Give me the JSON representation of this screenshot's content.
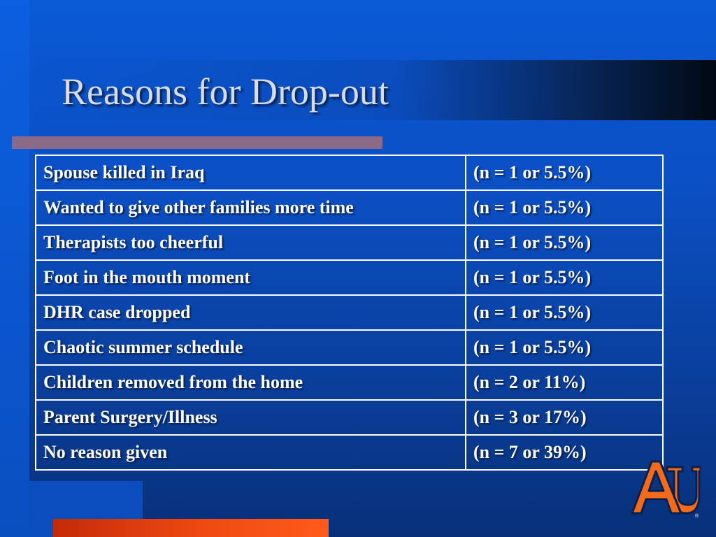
{
  "slide": {
    "title": "Reasons for Drop-out"
  },
  "table": {
    "rows": [
      {
        "reason": "Spouse killed in Iraq",
        "count": "(n = 1 or 5.5%)"
      },
      {
        "reason": "Wanted to give other families more time",
        "count": "(n = 1 or 5.5%)"
      },
      {
        "reason": "Therapists too cheerful",
        "count": "(n = 1 or 5.5%)"
      },
      {
        "reason": "Foot in the mouth moment",
        "count": "(n = 1 or 5.5%)"
      },
      {
        "reason": "DHR case dropped",
        "count": "(n = 1 or 5.5%)"
      },
      {
        "reason": "Chaotic summer schedule",
        "count": "(n = 1 or 5.5%)"
      },
      {
        "reason": "Children removed from the home",
        "count": "(n = 2 or 11%)"
      },
      {
        "reason": "Parent Surgery/Illness",
        "count": "(n = 3 or 17%)"
      },
      {
        "reason": "No reason given",
        "count": "(n = 7 or 39%)"
      }
    ]
  },
  "logo": {
    "name": "au-logo",
    "text": "AU",
    "registered_mark": "®",
    "fill_color": "#f26a1b",
    "outline_color": "#0b1f4d"
  },
  "colors": {
    "background": "#0b4fc4",
    "title_rule": "#8a6a86",
    "accent_bar": "#f04a12",
    "table_border": "#ffffff",
    "text": "#ffffff"
  }
}
